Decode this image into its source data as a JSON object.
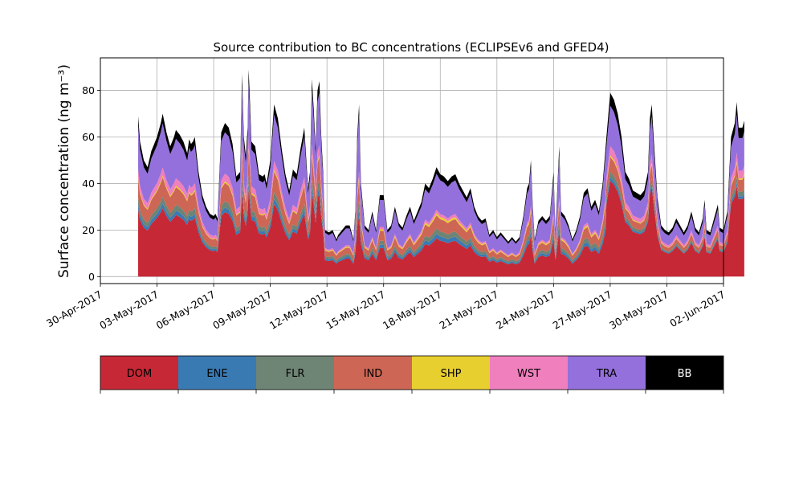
{
  "chart_data": {
    "type": "area",
    "stacked": true,
    "title": "Source contribution to BC concentrations (ECLIPSEv6 and GFED4)",
    "ylabel": "Surface concentration (ng m⁻³)",
    "xlabel": "",
    "x_start_date": "2017-05-02",
    "x_end_date": "2017-06-01",
    "xlim_dates": [
      "2017-04-30",
      "2017-06-02"
    ],
    "x_ticks": [
      "30-Apr-2017",
      "03-May-2017",
      "06-May-2017",
      "09-May-2017",
      "12-May-2017",
      "15-May-2017",
      "18-May-2017",
      "21-May-2017",
      "24-May-2017",
      "27-May-2017",
      "30-May-2017",
      "02-Jun-2017"
    ],
    "ylim": [
      -3,
      94
    ],
    "y_ticks": [
      0,
      20,
      40,
      60,
      80
    ],
    "grid": true,
    "totals_keyframes": [
      [
        0,
        69
      ],
      [
        0.1,
        58
      ],
      [
        0.3,
        50
      ],
      [
        0.5,
        47
      ],
      [
        0.7,
        54
      ],
      [
        1.0,
        60
      ],
      [
        1.2,
        66
      ],
      [
        1.3,
        70
      ],
      [
        1.5,
        62
      ],
      [
        1.7,
        56
      ],
      [
        1.9,
        60
      ],
      [
        2.0,
        63
      ],
      [
        2.2,
        61
      ],
      [
        2.4,
        58
      ],
      [
        2.6,
        53
      ],
      [
        2.7,
        59
      ],
      [
        2.8,
        57
      ],
      [
        2.9,
        58
      ],
      [
        3.0,
        60
      ],
      [
        3.2,
        45
      ],
      [
        3.4,
        35
      ],
      [
        3.6,
        30
      ],
      [
        3.8,
        27
      ],
      [
        4.0,
        26
      ],
      [
        4.1,
        27
      ],
      [
        4.2,
        25
      ],
      [
        4.4,
        62
      ],
      [
        4.6,
        66
      ],
      [
        4.8,
        64
      ],
      [
        5.0,
        57
      ],
      [
        5.2,
        43
      ],
      [
        5.4,
        45
      ],
      [
        5.5,
        87
      ],
      [
        5.6,
        60
      ],
      [
        5.7,
        52
      ],
      [
        5.8,
        64
      ],
      [
        5.85,
        89
      ],
      [
        5.9,
        80
      ],
      [
        6.0,
        58
      ],
      [
        6.2,
        56
      ],
      [
        6.4,
        44
      ],
      [
        6.6,
        43
      ],
      [
        6.7,
        44
      ],
      [
        6.8,
        40
      ],
      [
        7.0,
        50
      ],
      [
        7.2,
        74
      ],
      [
        7.4,
        68
      ],
      [
        7.6,
        55
      ],
      [
        7.8,
        44
      ],
      [
        8.0,
        37
      ],
      [
        8.2,
        46
      ],
      [
        8.4,
        44
      ],
      [
        8.6,
        55
      ],
      [
        8.8,
        64
      ],
      [
        9.0,
        38
      ],
      [
        9.1,
        45
      ],
      [
        9.2,
        85
      ],
      [
        9.3,
        72
      ],
      [
        9.4,
        55
      ],
      [
        9.5,
        80
      ],
      [
        9.6,
        84
      ],
      [
        9.7,
        60
      ],
      [
        9.8,
        45
      ],
      [
        9.9,
        20
      ],
      [
        10.1,
        19
      ],
      [
        10.3,
        20
      ],
      [
        10.5,
        16
      ],
      [
        10.6,
        18
      ],
      [
        10.8,
        20
      ],
      [
        11.0,
        22
      ],
      [
        11.2,
        22
      ],
      [
        11.4,
        16
      ],
      [
        11.5,
        28
      ],
      [
        11.6,
        60
      ],
      [
        11.7,
        74
      ],
      [
        11.8,
        40
      ],
      [
        12.0,
        22
      ],
      [
        12.2,
        20
      ],
      [
        12.4,
        28
      ],
      [
        12.6,
        20
      ],
      [
        12.8,
        35
      ],
      [
        13.0,
        35
      ],
      [
        13.2,
        20
      ],
      [
        13.4,
        22
      ],
      [
        13.6,
        30
      ],
      [
        13.8,
        23
      ],
      [
        14.0,
        21
      ],
      [
        14.2,
        26
      ],
      [
        14.4,
        30
      ],
      [
        14.6,
        24
      ],
      [
        14.8,
        28
      ],
      [
        15.0,
        32
      ],
      [
        15.2,
        40
      ],
      [
        15.4,
        38
      ],
      [
        15.6,
        42
      ],
      [
        15.8,
        47
      ],
      [
        16.0,
        44
      ],
      [
        16.2,
        43
      ],
      [
        16.4,
        41
      ],
      [
        16.6,
        43
      ],
      [
        16.8,
        44
      ],
      [
        17.0,
        40
      ],
      [
        17.2,
        37
      ],
      [
        17.4,
        34
      ],
      [
        17.6,
        38
      ],
      [
        17.8,
        30
      ],
      [
        18.0,
        26
      ],
      [
        18.2,
        24
      ],
      [
        18.4,
        25
      ],
      [
        18.6,
        18
      ],
      [
        18.8,
        20
      ],
      [
        19.0,
        17
      ],
      [
        19.2,
        19
      ],
      [
        19.4,
        17
      ],
      [
        19.6,
        15
      ],
      [
        19.8,
        17
      ],
      [
        20.0,
        15
      ],
      [
        20.2,
        17
      ],
      [
        20.4,
        26
      ],
      [
        20.6,
        38
      ],
      [
        20.7,
        40
      ],
      [
        20.8,
        50
      ],
      [
        20.9,
        30
      ],
      [
        21.0,
        16
      ],
      [
        21.2,
        24
      ],
      [
        21.4,
        26
      ],
      [
        21.6,
        24
      ],
      [
        21.8,
        26
      ],
      [
        22.0,
        45
      ],
      [
        22.1,
        20
      ],
      [
        22.2,
        38
      ],
      [
        22.3,
        56
      ],
      [
        22.4,
        28
      ],
      [
        22.6,
        26
      ],
      [
        22.8,
        22
      ],
      [
        23.0,
        16
      ],
      [
        23.2,
        20
      ],
      [
        23.4,
        26
      ],
      [
        23.6,
        36
      ],
      [
        23.8,
        38
      ],
      [
        24.0,
        30
      ],
      [
        24.2,
        33
      ],
      [
        24.4,
        28
      ],
      [
        24.6,
        40
      ],
      [
        24.8,
        60
      ],
      [
        25.0,
        79
      ],
      [
        25.2,
        76
      ],
      [
        25.4,
        70
      ],
      [
        25.6,
        60
      ],
      [
        25.8,
        45
      ],
      [
        26.0,
        42
      ],
      [
        26.2,
        37
      ],
      [
        26.4,
        36
      ],
      [
        26.6,
        35
      ],
      [
        26.8,
        37
      ],
      [
        27.0,
        45
      ],
      [
        27.1,
        68
      ],
      [
        27.2,
        74
      ],
      [
        27.3,
        60
      ],
      [
        27.5,
        34
      ],
      [
        27.7,
        22
      ],
      [
        27.9,
        20
      ],
      [
        28.1,
        19
      ],
      [
        28.3,
        21
      ],
      [
        28.5,
        25
      ],
      [
        28.7,
        22
      ],
      [
        28.9,
        19
      ],
      [
        29.1,
        22
      ],
      [
        29.3,
        28
      ],
      [
        29.5,
        21
      ],
      [
        29.7,
        19
      ],
      [
        29.9,
        25
      ],
      [
        30.0,
        33
      ],
      [
        30.1,
        20
      ],
      [
        30.3,
        19
      ],
      [
        30.5,
        25
      ],
      [
        30.7,
        31
      ],
      [
        30.8,
        21
      ],
      [
        31.0,
        20
      ],
      [
        31.2,
        28
      ],
      [
        31.4,
        60
      ],
      [
        31.6,
        66
      ],
      [
        31.7,
        75
      ],
      [
        31.8,
        64
      ],
      [
        32.0,
        64
      ],
      [
        32.1,
        67
      ]
    ],
    "shares_by_regime": {
      "early": {
        "DOM": 0.42,
        "ENE": 0.03,
        "FLR": 0.04,
        "IND": 0.12,
        "SHP": 0.01,
        "WST": 0.05,
        "TRA": 0.27,
        "BB": 0.06
      },
      "mid": {
        "DOM": 0.35,
        "ENE": 0.04,
        "FLR": 0.05,
        "IND": 0.12,
        "SHP": 0.02,
        "WST": 0.03,
        "TRA": 0.33,
        "BB": 0.06
      },
      "late": {
        "DOM": 0.52,
        "ENE": 0.02,
        "FLR": 0.03,
        "IND": 0.08,
        "SHP": 0.01,
        "WST": 0.05,
        "TRA": 0.22,
        "BB": 0.07
      }
    },
    "series": [
      {
        "name": "DOM",
        "color": "#c62836"
      },
      {
        "name": "ENE",
        "color": "#3a7ab3"
      },
      {
        "name": "FLR",
        "color": "#6e8474"
      },
      {
        "name": "IND",
        "color": "#cd6655"
      },
      {
        "name": "SHP",
        "color": "#e8cf30"
      },
      {
        "name": "WST",
        "color": "#f07fbd"
      },
      {
        "name": "TRA",
        "color": "#9470dc"
      },
      {
        "name": "BB",
        "color": "#000000"
      }
    ]
  }
}
